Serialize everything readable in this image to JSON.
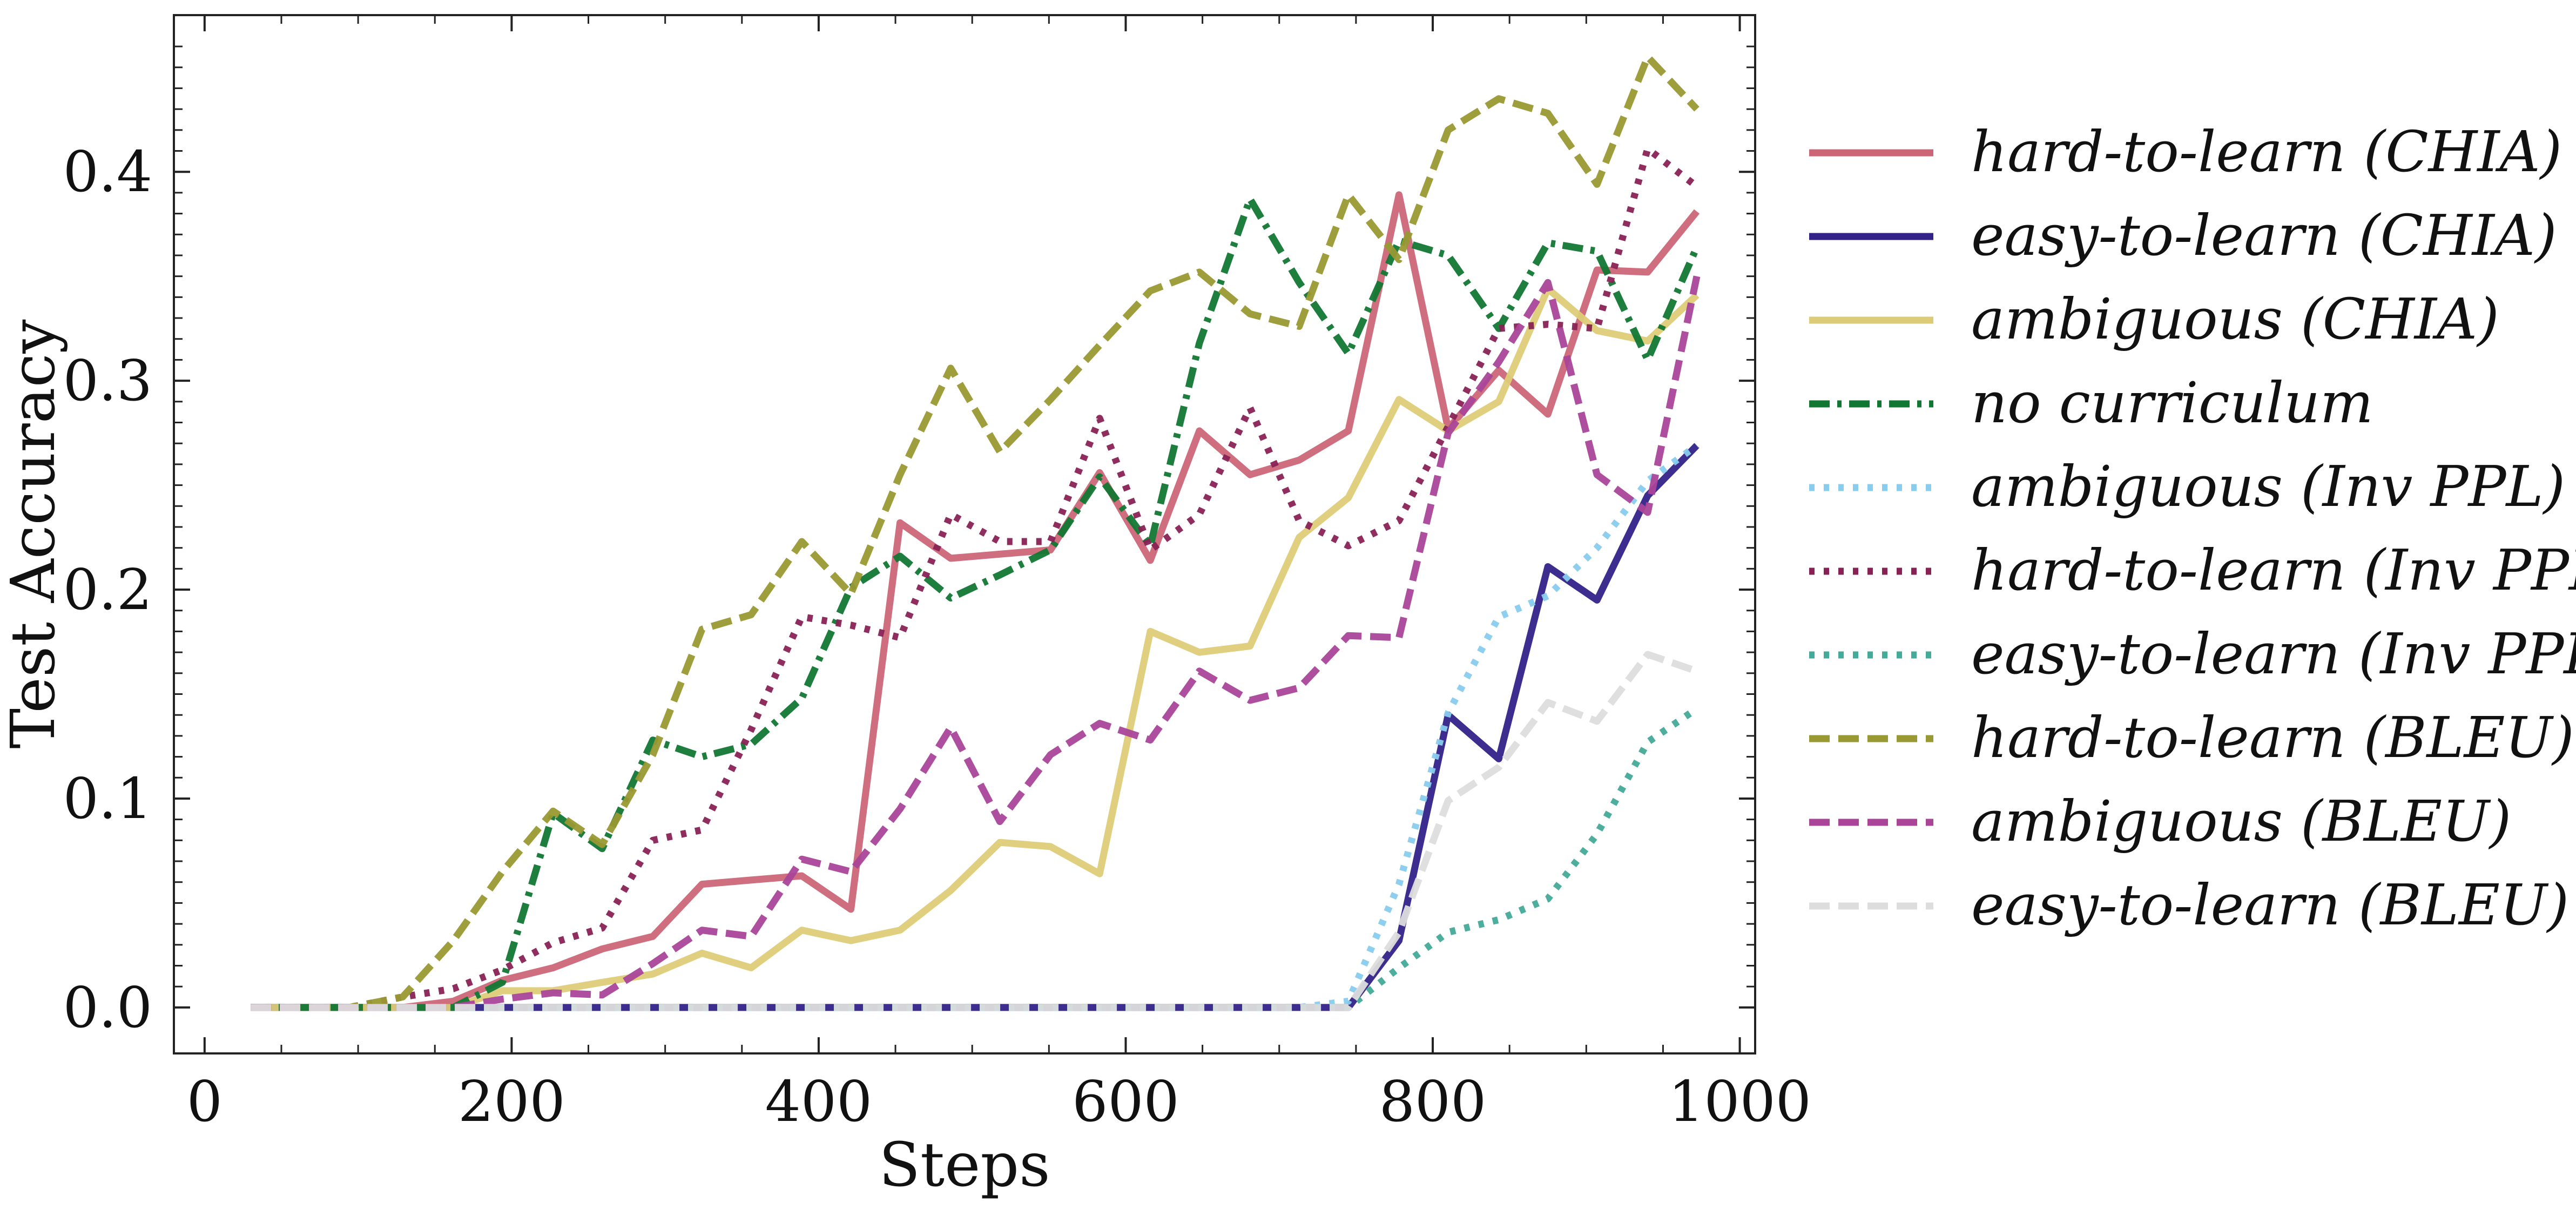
{
  "chart_data": {
    "type": "line",
    "xlabel": "Steps",
    "ylabel": "Test Accuracy",
    "xlim": [
      -20,
      1010
    ],
    "ylim": [
      -0.022,
      0.475
    ],
    "xticks": [
      0,
      200,
      400,
      600,
      800,
      1000
    ],
    "xtick_labels": [
      "0",
      "200",
      "400",
      "600",
      "800",
      "1000"
    ],
    "yticks": [
      0.0,
      0.1,
      0.2,
      0.3,
      0.4
    ],
    "ytick_labels": [
      "0.0",
      "0.1",
      "0.2",
      "0.3",
      "0.4"
    ],
    "grid": false,
    "legend_position": "right-outside",
    "series": [
      {
        "name": "hard-to-learn (CHIA)",
        "color": "#CC6677",
        "style": "solid",
        "x": [
          30,
          62,
          94,
          129,
          162,
          194,
          227,
          259,
          292,
          324,
          356,
          389,
          421,
          453,
          486,
          518,
          551,
          583,
          616,
          648,
          681,
          713,
          745,
          778,
          810,
          843,
          875,
          907,
          940,
          972
        ],
        "y": [
          0,
          0,
          0,
          0,
          0.003,
          0.013,
          0.019,
          0.028,
          0.034,
          0.059,
          0.061,
          0.063,
          0.047,
          0.232,
          0.215,
          0.217,
          0.219,
          0.256,
          0.214,
          0.276,
          0.255,
          0.262,
          0.276,
          0.389,
          0.277,
          0.305,
          0.284,
          0.353,
          0.352,
          0.381
        ]
      },
      {
        "name": "easy-to-learn (CHIA)",
        "color": "#332288",
        "style": "solid",
        "x": [
          30,
          62,
          94,
          129,
          162,
          194,
          227,
          259,
          292,
          324,
          356,
          389,
          421,
          453,
          486,
          518,
          551,
          583,
          616,
          648,
          681,
          713,
          745,
          778,
          810,
          843,
          875,
          907,
          940,
          972
        ],
        "y": [
          0,
          0,
          0,
          0,
          0,
          0,
          0,
          0,
          0,
          0,
          0,
          0,
          0,
          0,
          0,
          0,
          0,
          0,
          0,
          0,
          0,
          0,
          0,
          0.032,
          0.14,
          0.119,
          0.211,
          0.195,
          0.245,
          0.269
        ]
      },
      {
        "name": "ambiguous (CHIA)",
        "color": "#DDCC77",
        "style": "solid",
        "x": [
          30,
          62,
          94,
          129,
          162,
          194,
          227,
          259,
          292,
          324,
          356,
          389,
          421,
          453,
          486,
          518,
          551,
          583,
          616,
          648,
          681,
          713,
          745,
          778,
          810,
          843,
          875,
          907,
          940,
          972
        ],
        "y": [
          0,
          0,
          0,
          0,
          0,
          0.008,
          0.008,
          0.012,
          0.016,
          0.026,
          0.019,
          0.037,
          0.032,
          0.037,
          0.056,
          0.079,
          0.077,
          0.064,
          0.18,
          0.17,
          0.173,
          0.225,
          0.244,
          0.291,
          0.276,
          0.29,
          0.344,
          0.324,
          0.319,
          0.341
        ]
      },
      {
        "name": "no curriculum",
        "color": "#117733",
        "style": "dashdot",
        "x": [
          30,
          62,
          94,
          129,
          162,
          194,
          227,
          259,
          292,
          324,
          356,
          389,
          421,
          453,
          486,
          518,
          551,
          583,
          616,
          648,
          681,
          713,
          745,
          778,
          810,
          843,
          875,
          907,
          940,
          972
        ],
        "y": [
          0,
          0,
          0,
          0,
          0,
          0.012,
          0.093,
          0.076,
          0.128,
          0.12,
          0.126,
          0.148,
          0.201,
          0.216,
          0.196,
          0.207,
          0.219,
          0.254,
          0.221,
          0.318,
          0.387,
          0.347,
          0.313,
          0.367,
          0.36,
          0.325,
          0.366,
          0.362,
          0.31,
          0.364
        ]
      },
      {
        "name": "ambiguous (Inv PPL)",
        "color": "#88CCEE",
        "style": "dotted",
        "x": [
          30,
          62,
          94,
          129,
          162,
          194,
          227,
          259,
          292,
          324,
          356,
          389,
          421,
          453,
          486,
          518,
          551,
          583,
          616,
          648,
          681,
          713,
          745,
          778,
          810,
          843,
          875,
          907,
          940,
          972
        ],
        "y": [
          0,
          0,
          0,
          0,
          0,
          0,
          0,
          0,
          0,
          0,
          0,
          0,
          0,
          0,
          0,
          0,
          0,
          0,
          0,
          0,
          0,
          0,
          0.003,
          0.059,
          0.141,
          0.187,
          0.197,
          0.22,
          0.252,
          0.269
        ]
      },
      {
        "name": "hard-to-learn (Inv PPL)",
        "color": "#882255",
        "style": "dotted",
        "x": [
          30,
          62,
          94,
          129,
          162,
          194,
          227,
          259,
          292,
          324,
          356,
          389,
          421,
          453,
          486,
          518,
          551,
          583,
          616,
          648,
          681,
          713,
          745,
          778,
          810,
          843,
          875,
          907,
          940,
          972
        ],
        "y": [
          0,
          0,
          0,
          0.005,
          0.009,
          0.018,
          0.031,
          0.038,
          0.08,
          0.085,
          0.133,
          0.187,
          0.183,
          0.177,
          0.236,
          0.223,
          0.223,
          0.282,
          0.219,
          0.236,
          0.287,
          0.233,
          0.221,
          0.233,
          0.278,
          0.325,
          0.327,
          0.325,
          0.411,
          0.393
        ]
      },
      {
        "name": "easy-to-learn (Inv PPL)",
        "color": "#44AA99",
        "style": "dotted",
        "x": [
          30,
          62,
          94,
          129,
          162,
          194,
          227,
          259,
          292,
          324,
          356,
          389,
          421,
          453,
          486,
          518,
          551,
          583,
          616,
          648,
          681,
          713,
          745,
          778,
          810,
          843,
          875,
          907,
          940,
          972
        ],
        "y": [
          0,
          0,
          0,
          0,
          0,
          0,
          0,
          0,
          0,
          0,
          0,
          0,
          0,
          0,
          0,
          0,
          0,
          0,
          0,
          0,
          0,
          0,
          0,
          0.019,
          0.036,
          0.042,
          0.052,
          0.083,
          0.127,
          0.143
        ]
      },
      {
        "name": "hard-to-learn (BLEU)",
        "color": "#999933",
        "style": "dashed",
        "x": [
          30,
          62,
          94,
          129,
          162,
          194,
          227,
          259,
          292,
          324,
          356,
          389,
          421,
          453,
          486,
          518,
          551,
          583,
          616,
          648,
          681,
          713,
          745,
          778,
          810,
          843,
          875,
          907,
          940,
          972
        ],
        "y": [
          0,
          0,
          0,
          0.005,
          0.032,
          0.065,
          0.094,
          0.078,
          0.121,
          0.181,
          0.188,
          0.223,
          0.198,
          0.255,
          0.306,
          0.266,
          0.291,
          0.317,
          0.343,
          0.352,
          0.332,
          0.326,
          0.389,
          0.358,
          0.42,
          0.435,
          0.428,
          0.394,
          0.455,
          0.43
        ]
      },
      {
        "name": "ambiguous (BLEU)",
        "color": "#AA4499",
        "style": "dashed",
        "x": [
          30,
          62,
          94,
          129,
          162,
          194,
          227,
          259,
          292,
          324,
          356,
          389,
          421,
          453,
          486,
          518,
          551,
          583,
          616,
          648,
          681,
          713,
          745,
          778,
          810,
          843,
          875,
          907,
          940,
          972
        ],
        "y": [
          0,
          0,
          0,
          0,
          0,
          0.004,
          0.007,
          0.006,
          0.021,
          0.037,
          0.034,
          0.071,
          0.065,
          0.095,
          0.134,
          0.089,
          0.121,
          0.136,
          0.128,
          0.161,
          0.147,
          0.153,
          0.178,
          0.177,
          0.275,
          0.309,
          0.347,
          0.255,
          0.237,
          0.35
        ]
      },
      {
        "name": "easy-to-learn (BLEU)",
        "color": "#DDDDDD",
        "style": "dashed",
        "x": [
          30,
          62,
          94,
          129,
          162,
          194,
          227,
          259,
          292,
          324,
          356,
          389,
          421,
          453,
          486,
          518,
          551,
          583,
          616,
          648,
          681,
          713,
          745,
          778,
          810,
          843,
          875,
          907,
          940,
          972
        ],
        "y": [
          0,
          0,
          0,
          0,
          0,
          0,
          0,
          0,
          0,
          0,
          0,
          0,
          0,
          0,
          0,
          0,
          0,
          0,
          0,
          0,
          0,
          0,
          0,
          0.036,
          0.099,
          0.115,
          0.146,
          0.137,
          0.169,
          0.161
        ]
      }
    ]
  }
}
